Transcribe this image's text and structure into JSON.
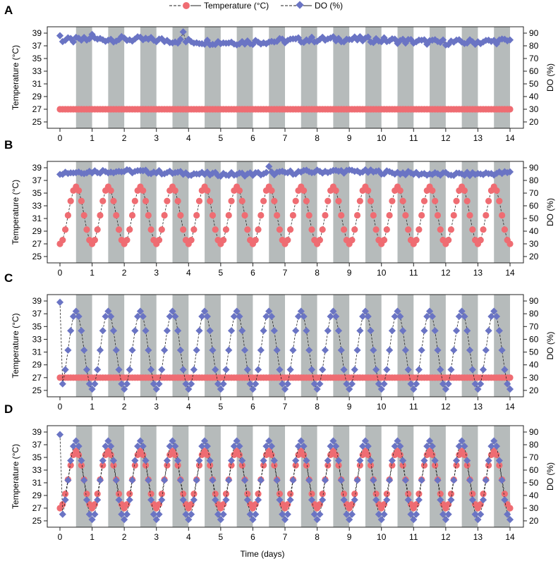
{
  "legend": {
    "temperature": "Temperature (°C)",
    "do": "DO (%)"
  },
  "shared_xlabel": "Time (days)",
  "colors": {
    "temperature": "#ef6c72",
    "do": "#6a74c4",
    "night": "#b6bbbb"
  },
  "chart_data": [
    {
      "panel": "A",
      "type": "line",
      "ylabel": "Temperature (°C)",
      "y2label": "DO (%)",
      "xlim": [
        0,
        14
      ],
      "xticks": [
        "0",
        "1",
        "2",
        "3",
        "4",
        "5",
        "6",
        "7",
        "8",
        "9",
        "10",
        "11",
        "12",
        "13",
        "14"
      ],
      "ylim": [
        24,
        40
      ],
      "yticks": [
        "25",
        "27",
        "29",
        "31",
        "33",
        "35",
        "37",
        "39"
      ],
      "y2lim": [
        15,
        95
      ],
      "y2ticks": [
        "20",
        "30",
        "40",
        "50",
        "60",
        "70",
        "80",
        "90"
      ],
      "temperature": {
        "pattern": "constant",
        "value": 27
      },
      "do": {
        "pattern": "constant",
        "mean": 84,
        "noise": 2.2,
        "spikes": [
          [
            0,
            88
          ],
          [
            1,
            89
          ],
          [
            3.8,
            91
          ]
        ]
      }
    },
    {
      "panel": "B",
      "type": "line",
      "ylabel": "Temperature (°C)",
      "y2label": "DO (%)",
      "xlim": [
        0,
        14
      ],
      "xticks": [
        "0",
        "1",
        "2",
        "3",
        "4",
        "5",
        "6",
        "7",
        "8",
        "9",
        "10",
        "11",
        "12",
        "13",
        "14"
      ],
      "ylim": [
        24,
        40
      ],
      "yticks": [
        "25",
        "27",
        "29",
        "31",
        "33",
        "35",
        "37",
        "39"
      ],
      "y2lim": [
        15,
        95
      ],
      "y2ticks": [
        "20",
        "30",
        "40",
        "50",
        "60",
        "70",
        "80",
        "90"
      ],
      "temperature": {
        "pattern": "diel",
        "min": 27,
        "max": 36,
        "start": 27
      },
      "do": {
        "pattern": "constant",
        "mean": 86,
        "noise": 1.5,
        "spikes": [
          [
            6.5,
            91
          ]
        ]
      }
    },
    {
      "panel": "C",
      "type": "line",
      "ylabel": "Temperature (°C)",
      "y2label": "DO (%)",
      "xlim": [
        0,
        14
      ],
      "xticks": [
        "0",
        "1",
        "2",
        "3",
        "4",
        "5",
        "6",
        "7",
        "8",
        "9",
        "10",
        "11",
        "12",
        "13",
        "14"
      ],
      "ylim": [
        24,
        40
      ],
      "yticks": [
        "25",
        "27",
        "29",
        "31",
        "33",
        "35",
        "37",
        "39"
      ],
      "y2lim": [
        15,
        95
      ],
      "y2ticks": [
        "20",
        "30",
        "40",
        "50",
        "60",
        "70",
        "80",
        "90"
      ],
      "temperature": {
        "pattern": "constant",
        "value": 27
      },
      "do": {
        "pattern": "diel",
        "min": 21,
        "max": 82,
        "start": 89
      }
    },
    {
      "panel": "D",
      "type": "line",
      "ylabel": "Temperature (°C)",
      "y2label": "DO (%)",
      "xlabel": "Time (days)",
      "xlim": [
        0,
        14
      ],
      "xticks": [
        "0",
        "1",
        "2",
        "3",
        "4",
        "5",
        "6",
        "7",
        "8",
        "9",
        "10",
        "11",
        "12",
        "13",
        "14"
      ],
      "ylim": [
        24,
        40
      ],
      "yticks": [
        "25",
        "27",
        "29",
        "31",
        "33",
        "35",
        "37",
        "39"
      ],
      "y2lim": [
        15,
        95
      ],
      "y2ticks": [
        "20",
        "30",
        "40",
        "50",
        "60",
        "70",
        "80",
        "90"
      ],
      "temperature": {
        "pattern": "diel",
        "min": 27,
        "max": 36,
        "start": 27
      },
      "do": {
        "pattern": "diel",
        "min": 21,
        "max": 83,
        "start": 88
      }
    }
  ]
}
